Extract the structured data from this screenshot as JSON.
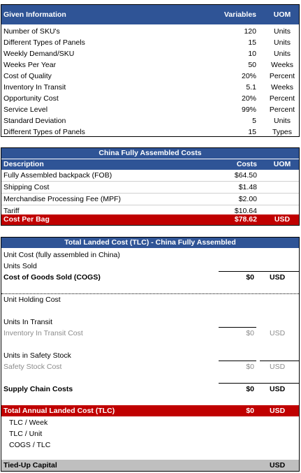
{
  "given": {
    "header": {
      "label": "Given Information",
      "variables": "Variables",
      "uom": "UOM"
    },
    "rows": [
      {
        "label": "Number of SKU's",
        "value": "120",
        "uom": "Units"
      },
      {
        "label": "Different Types of Panels",
        "value": "15",
        "uom": "Units"
      },
      {
        "label": "Weekly Demand/SKU",
        "value": "10",
        "uom": "Units"
      },
      {
        "label": "Weeks Per Year",
        "value": "50",
        "uom": "Weeks"
      },
      {
        "label": "Cost of Quality",
        "value": "20%",
        "uom": "Percent"
      },
      {
        "label": "Inventory In Transit",
        "value": "5.1",
        "uom": "Weeks"
      },
      {
        "label": "Opportunity Cost",
        "value": "20%",
        "uom": "Percent"
      },
      {
        "label": "Service Level",
        "value": "99%",
        "uom": "Percent"
      },
      {
        "label": "Standard Deviation",
        "value": "5",
        "uom": "Units"
      },
      {
        "label": "Different Types of Panels",
        "value": "15",
        "uom": "Types"
      }
    ]
  },
  "china": {
    "title": "China Fully Assembled Costs",
    "header": {
      "label": "Description",
      "costs": "Costs",
      "uom": "UOM"
    },
    "rows": [
      {
        "label": "Fully Assembled backpack (FOB)",
        "value": "$64.50",
        "uom": ""
      },
      {
        "label": "Shipping Cost",
        "value": "$1.48",
        "uom": ""
      },
      {
        "label": "Merchandise Processing Fee (MPF)",
        "value": "$2.00",
        "uom": ""
      },
      {
        "label": "Tariff",
        "value": "$10.64",
        "uom": ""
      }
    ],
    "total": {
      "label": "Cost Per Bag",
      "value": "$78.62",
      "uom": "USD"
    }
  },
  "tlc": {
    "title": "Total Landed Cost (TLC) - China Fully Assembled",
    "unit_cost": "Unit Cost (fully assembled in China)",
    "units_sold": "Units Sold",
    "cogs": {
      "label": "Cost of Goods Sold (COGS)",
      "value": "$0",
      "uom": "USD"
    },
    "unit_holding_cost": "Unit Holding Cost",
    "units_in_transit": "Units In Transit",
    "inventory_in_transit_cost": {
      "label": "Inventory In Transit Cost",
      "value": "$0",
      "uom": "USD"
    },
    "units_in_safety_stock": "Units in Safety Stock",
    "safety_stock_cost": {
      "label": "Safety Stock Cost",
      "value": "$0",
      "uom": "USD"
    },
    "supply_chain_costs": {
      "label": "Supply Chain Costs",
      "value": "$0",
      "uom": "USD"
    },
    "total_annual": {
      "label": "Total Annual Landed Cost (TLC)",
      "value": "$0",
      "uom": "USD"
    },
    "tlc_week": "TLC / Week",
    "tlc_unit": "TLC / Unit",
    "cogs_tlc": "COGS / TLC",
    "tied_up": {
      "label": "Tied-Up Capital",
      "uom": "USD"
    }
  },
  "colors": {
    "blue_header": "#2f5496",
    "red_total": "#c00000",
    "grey_footer": "#bfbfbf"
  }
}
